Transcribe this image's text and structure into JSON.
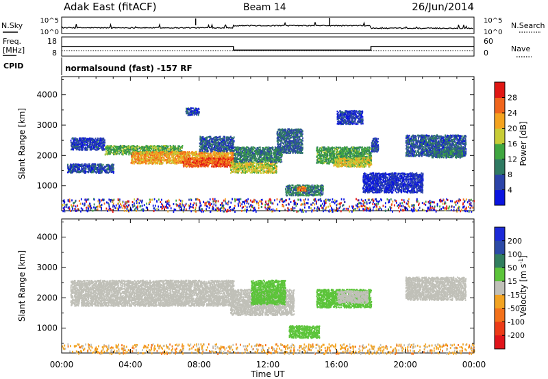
{
  "header": {
    "station": "Adak East (fitACF)",
    "beam": "Beam 14",
    "date": "26/Jun/2014"
  },
  "chart_data": [
    {
      "type": "line",
      "panel": "noise",
      "left_label": "N.Sky",
      "right_label": "N.Search",
      "left_ticks": [
        "10^5",
        "10^0"
      ],
      "right_ticks": [
        "10^5",
        "10^0"
      ],
      "series": [
        {
          "name": "N.Sky",
          "x": [
            0,
            10,
            10,
            18,
            18,
            24
          ],
          "values": [
            0.35,
            0.35,
            0.48,
            0.48,
            0.32,
            0.32
          ]
        }
      ]
    },
    {
      "type": "line",
      "panel": "frequency",
      "left_label_lines": [
        "Freq.",
        "[MHz]"
      ],
      "right_label": "Nave",
      "left_ticks": [
        18,
        8
      ],
      "right_ticks": [
        60,
        0
      ],
      "series": [
        {
          "name": "Freq.",
          "x": [
            0,
            10,
            10,
            18,
            18,
            24
          ],
          "values": [
            13,
            13,
            10,
            10,
            13,
            13
          ]
        },
        {
          "name": "Nave",
          "x": [
            0,
            24
          ],
          "values": [
            5,
            5
          ]
        }
      ]
    },
    {
      "type": "text",
      "panel": "cpid",
      "left_label": "CPID",
      "text": "normalsound (fast) -157 RF"
    },
    {
      "type": "heatmap",
      "panel": "power",
      "ylabel": "Slant Range [km]",
      "yticks": [
        1000,
        2000,
        3000,
        4000
      ],
      "ylim": [
        180,
        4600
      ],
      "xlim": [
        0,
        24
      ],
      "colorbar": {
        "label": "Power [dB]",
        "ticks": [
          4,
          8,
          12,
          16,
          20,
          24,
          28
        ],
        "range": [
          0,
          32
        ],
        "colors": [
          "#0a14e0",
          "#2b43a8",
          "#2f7a62",
          "#3fa640",
          "#c8cc36",
          "#f4a31f",
          "#f0651c",
          "#e01714"
        ]
      },
      "regions": [
        {
          "time": [
            0.3,
            3.0
          ],
          "range": [
            1450,
            1750
          ],
          "value": 6
        },
        {
          "time": [
            0.5,
            2.5
          ],
          "range": [
            2200,
            2600
          ],
          "value": 5
        },
        {
          "time": [
            2.5,
            7.0
          ],
          "range": [
            2050,
            2350
          ],
          "value": 14
        },
        {
          "time": [
            4.0,
            10.0
          ],
          "range": [
            1750,
            2150
          ],
          "value": 22
        },
        {
          "time": [
            7.0,
            10.0
          ],
          "range": [
            1650,
            1950
          ],
          "value": 27
        },
        {
          "time": [
            8.0,
            10.0
          ],
          "range": [
            2150,
            2650
          ],
          "value": 7
        },
        {
          "time": [
            7.2,
            8.0
          ],
          "range": [
            3350,
            3600
          ],
          "value": 6
        },
        {
          "time": [
            9.8,
            12.5
          ],
          "range": [
            1450,
            1800
          ],
          "value": 18
        },
        {
          "time": [
            10.0,
            12.8
          ],
          "range": [
            1800,
            2300
          ],
          "value": 10
        },
        {
          "time": [
            12.5,
            14.0
          ],
          "range": [
            2100,
            2900
          ],
          "value": 8
        },
        {
          "time": [
            13.0,
            15.2
          ],
          "range": [
            700,
            1050
          ],
          "value": 10
        },
        {
          "time": [
            13.7,
            14.2
          ],
          "range": [
            850,
            1000
          ],
          "value": 25
        },
        {
          "time": [
            14.8,
            18.0
          ],
          "range": [
            1750,
            2300
          ],
          "value": 13
        },
        {
          "time": [
            15.8,
            18.0
          ],
          "range": [
            1650,
            1950
          ],
          "value": 19
        },
        {
          "time": [
            16.0,
            17.5
          ],
          "range": [
            3050,
            3500
          ],
          "value": 5
        },
        {
          "time": [
            18.0,
            18.4
          ],
          "range": [
            2150,
            2600
          ],
          "value": 6
        },
        {
          "time": [
            20.0,
            23.5
          ],
          "range": [
            2000,
            2700
          ],
          "value": 7
        },
        {
          "time": [
            21.5,
            23.3
          ],
          "range": [
            1950,
            2200
          ],
          "value": 10
        },
        {
          "time": [
            17.5,
            21.0
          ],
          "range": [
            800,
            1450
          ],
          "value": 4
        },
        {
          "time": [
            0.0,
            24.0
          ],
          "range": [
            180,
            600
          ],
          "value": 9
        }
      ]
    },
    {
      "type": "heatmap",
      "panel": "velocity",
      "ylabel": "Slant Range [km]",
      "yticks": [
        1000,
        2000,
        3000,
        4000
      ],
      "ylim": [
        180,
        4600
      ],
      "xlim": [
        0,
        24
      ],
      "xlabel": "Time UT",
      "xticks": [
        "00:00",
        "04:00",
        "08:00",
        "12:00",
        "16:00",
        "20:00",
        "00:00"
      ],
      "colorbar": {
        "label": "Velocity [m s^-1]",
        "label_text": "Velocity [m s",
        "label_sup": "-1",
        "label_end": "]",
        "ticks": [
          "200",
          "100",
          "50",
          "15",
          "-15",
          "-50",
          "-100",
          "-200"
        ],
        "colors": [
          "#1c2ad8",
          "#2c4aa6",
          "#317e5e",
          "#5cc43a",
          "#c0c0b8",
          "#f2a322",
          "#f3711a",
          "#ec3b17",
          "#e0141a"
        ]
      },
      "regions": [
        {
          "time": [
            0.5,
            10.0
          ],
          "range": [
            1750,
            2600
          ],
          "value": 0
        },
        {
          "time": [
            9.8,
            13.5
          ],
          "range": [
            1450,
            2300
          ],
          "value": 0
        },
        {
          "time": [
            11.0,
            13.0
          ],
          "range": [
            1800,
            2600
          ],
          "value": 30
        },
        {
          "time": [
            13.2,
            15.0
          ],
          "range": [
            700,
            1100
          ],
          "value": 40
        },
        {
          "time": [
            14.8,
            18.0
          ],
          "range": [
            1700,
            2300
          ],
          "value": 25
        },
        {
          "time": [
            16.0,
            17.8
          ],
          "range": [
            1850,
            2250
          ],
          "value": 0
        },
        {
          "time": [
            20.0,
            23.5
          ],
          "range": [
            1950,
            2700
          ],
          "value": 0
        },
        {
          "time": [
            0.0,
            24.0
          ],
          "range": [
            180,
            500
          ],
          "value": -30
        }
      ]
    }
  ]
}
